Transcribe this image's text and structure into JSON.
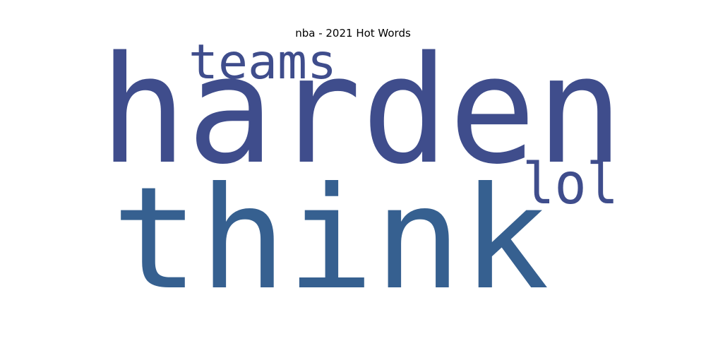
{
  "chart_data": {
    "type": "wordcloud",
    "title": "nba - 2021 Hot Words",
    "words": [
      {
        "text": "harden",
        "weight": 1.0,
        "color": "#3f4d8c"
      },
      {
        "text": "think",
        "weight": 0.95,
        "color": "#366090"
      },
      {
        "text": "teams",
        "weight": 0.35,
        "color": "#3f4d8c"
      },
      {
        "text": "lol",
        "weight": 0.35,
        "color": "#3f4d8c"
      }
    ]
  }
}
